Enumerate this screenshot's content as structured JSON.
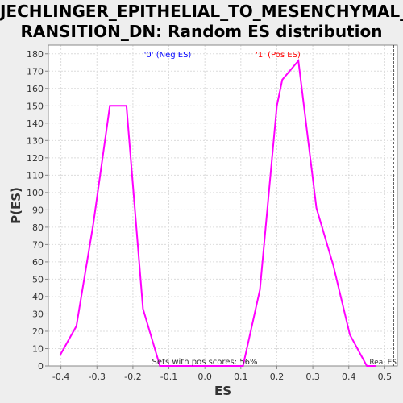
{
  "title_line1": "JECHLINGER_EPITHELIAL_TO_MESENCHYMAL_T",
  "title_line2": "RANSITION_DN: Random ES distribution",
  "annotations": {
    "neg_label": "'0' (Neg ES)",
    "pos_label": "'1' (Pos ES)",
    "pos_scores": "Sets with pos scores: 56%",
    "real_es": "Real ES"
  },
  "colors": {
    "line": "#ff00ff",
    "neg_label": "#0000ff",
    "pos_label": "#ff0000",
    "plot_bg": "#ffffff",
    "grid": "#dcdcdc",
    "page_bg": "#eeeeee"
  },
  "chart_data": {
    "type": "line",
    "xlabel": "ES",
    "ylabel": "P(ES)",
    "xlim": [
      -0.435,
      0.535
    ],
    "ylim": [
      0,
      185
    ],
    "xticks": [
      -0.4,
      -0.3,
      -0.2,
      -0.1,
      0.0,
      0.1,
      0.2,
      0.3,
      0.4,
      0.5
    ],
    "xtick_labels": [
      "-0.4",
      "-0.3",
      "-0.2",
      "-0.1",
      "0.0",
      "0.1",
      "0.2",
      "0.3",
      "0.4",
      "0.5"
    ],
    "yticks": [
      0,
      10,
      20,
      30,
      40,
      50,
      60,
      70,
      80,
      90,
      100,
      110,
      120,
      130,
      140,
      150,
      160,
      170,
      180
    ],
    "ytick_labels": [
      "0",
      "10",
      "20",
      "30",
      "40",
      "50",
      "60",
      "70",
      "80",
      "90",
      "100",
      "110",
      "120",
      "130",
      "140",
      "150",
      "160",
      "170",
      "180"
    ],
    "grid": true,
    "series": [
      {
        "x": [
          -0.403,
          -0.357,
          -0.31,
          -0.264,
          -0.218,
          -0.172,
          -0.125,
          -0.079,
          -0.033,
          0.014,
          0.06,
          0.106,
          0.153,
          0.2,
          0.215,
          0.26,
          0.31,
          0.357,
          0.403,
          0.45,
          0.475
        ],
        "y": [
          6,
          23,
          82,
          150,
          150,
          33,
          0,
          0,
          0,
          0,
          0,
          0,
          44,
          150,
          165,
          176,
          91,
          58,
          18,
          0,
          0
        ]
      }
    ],
    "real_es": 0.5235
  }
}
